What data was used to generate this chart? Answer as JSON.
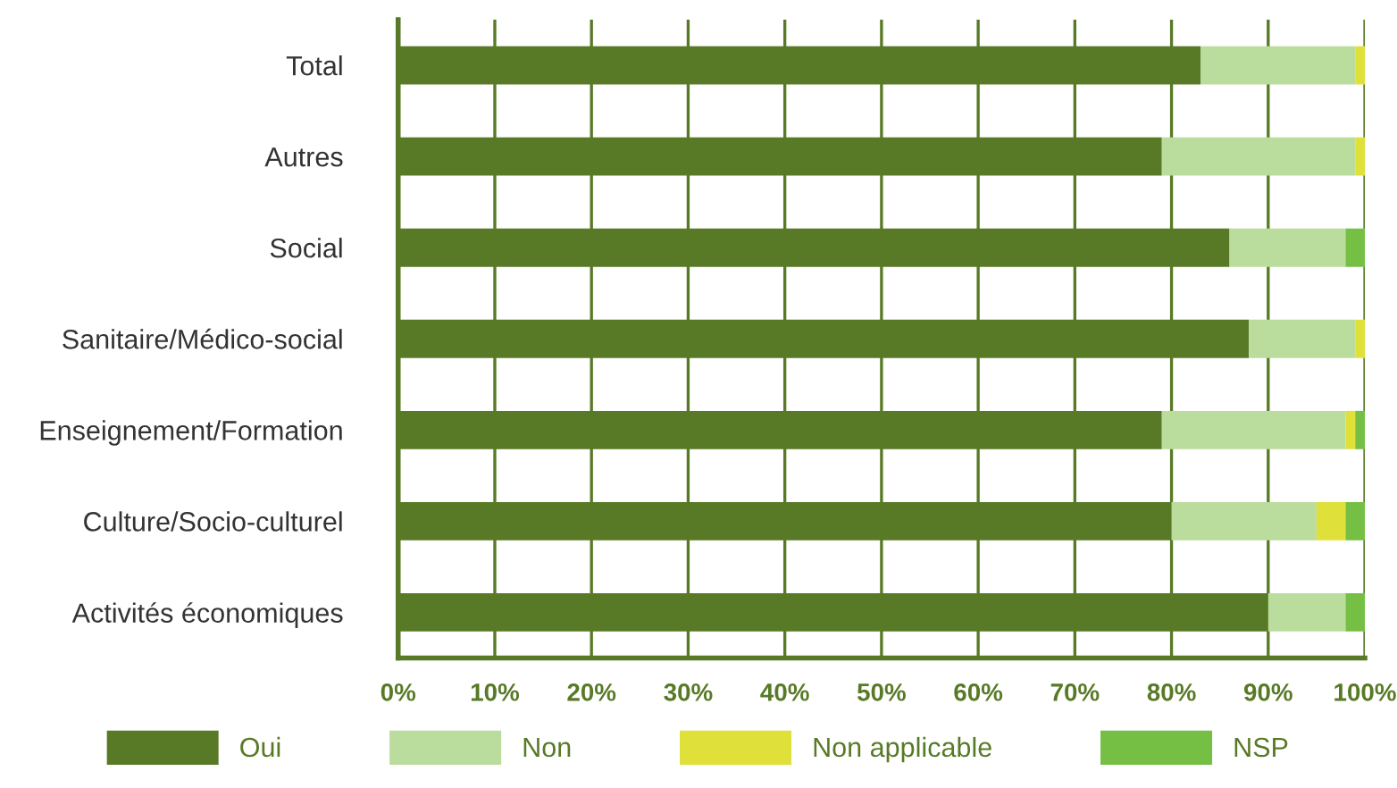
{
  "chart_data": {
    "type": "bar",
    "orientation": "horizontal",
    "stacked": true,
    "categories": [
      "Total",
      "Autres",
      "Social",
      "Sanitaire/Médico-social",
      "Enseignement/Formation",
      "Culture/Socio-culturel",
      "Activités économiques"
    ],
    "series": [
      {
        "name": "Oui",
        "color": "#587a26",
        "values": [
          83,
          79,
          86,
          88,
          79,
          80,
          90
        ]
      },
      {
        "name": "Non",
        "color": "#badc9c",
        "values": [
          16,
          20,
          12,
          11,
          19,
          15,
          8
        ]
      },
      {
        "name": "Non applicable",
        "color": "#dfe03a",
        "values": [
          1,
          1,
          0,
          1,
          1,
          3,
          0
        ]
      },
      {
        "name": "NSP",
        "color": "#74bf44",
        "values": [
          0,
          0,
          2,
          0,
          1,
          2,
          2
        ]
      }
    ],
    "xlim": [
      0,
      100
    ],
    "xticks": [
      {
        "value": 0,
        "label": "0%"
      },
      {
        "value": 10,
        "label": "10%"
      },
      {
        "value": 20,
        "label": "20%"
      },
      {
        "value": 30,
        "label": "30%"
      },
      {
        "value": 40,
        "label": "40%"
      },
      {
        "value": 50,
        "label": "50%"
      },
      {
        "value": 60,
        "label": "60%"
      },
      {
        "value": 70,
        "label": "70%"
      },
      {
        "value": 80,
        "label": "80%"
      },
      {
        "value": 90,
        "label": "90%"
      },
      {
        "value": 100,
        "label": "100%"
      }
    ],
    "grid": "x",
    "legend": "bottom"
  }
}
